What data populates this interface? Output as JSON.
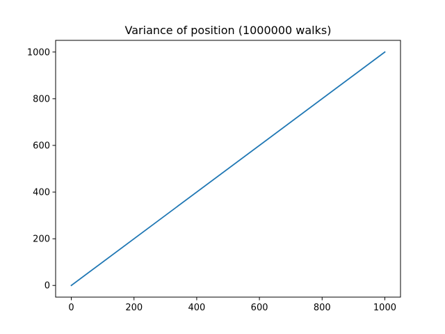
{
  "chart_data": {
    "type": "line",
    "title": "Variance of position (1000000 walks)",
    "xlabel": "",
    "ylabel": "",
    "xlim": [
      -50,
      1050
    ],
    "ylim": [
      -50,
      1050
    ],
    "xticks": [
      0,
      200,
      400,
      600,
      800,
      1000
    ],
    "yticks": [
      0,
      200,
      400,
      600,
      800,
      1000
    ],
    "xtick_labels": [
      "0",
      "200",
      "400",
      "600",
      "800",
      "1000"
    ],
    "ytick_labels": [
      "0",
      "200",
      "400",
      "600",
      "800",
      "1000"
    ],
    "grid": false,
    "legend": "none",
    "series": [
      {
        "color": "#1f77b4",
        "x": [
          0,
          1000
        ],
        "y": [
          0,
          1000
        ]
      }
    ]
  }
}
